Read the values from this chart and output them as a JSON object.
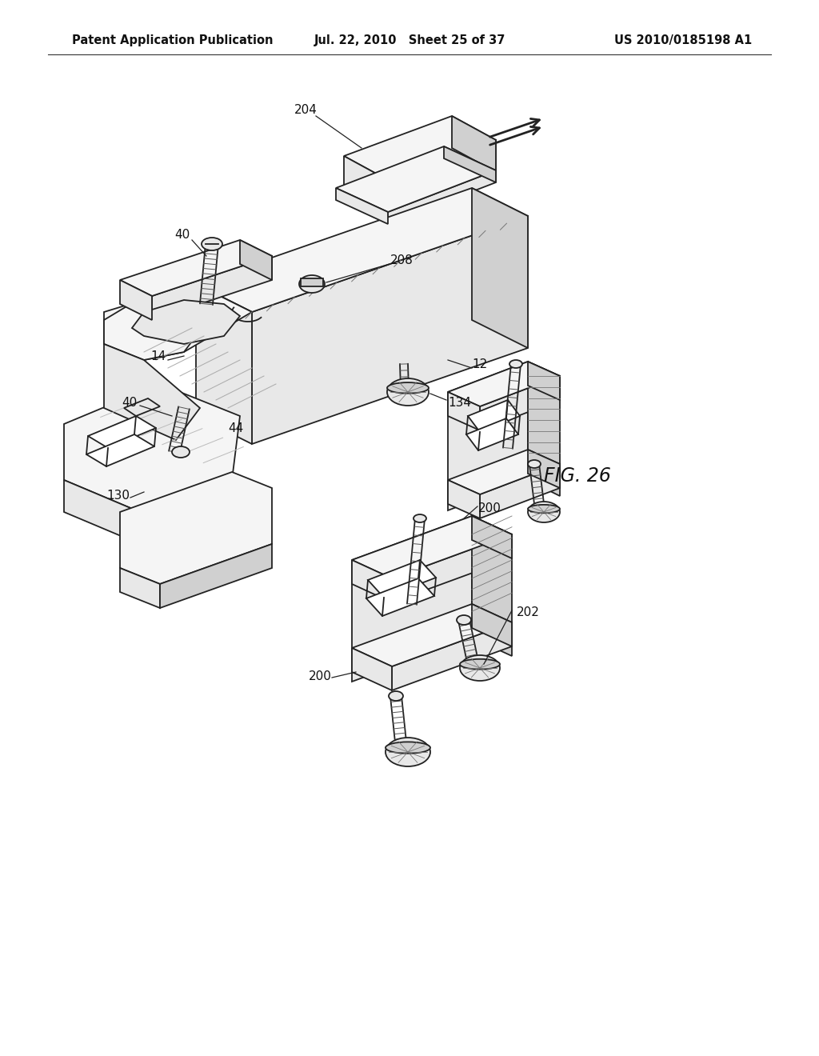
{
  "title_left": "Patent Application Publication",
  "title_center": "Jul. 22, 2010   Sheet 25 of 37",
  "title_right": "US 2010/0185198 A1",
  "fig_label": "FIG. 26",
  "background_color": "#ffffff",
  "line_color": "#222222",
  "fc_white": "#ffffff",
  "fc_light": "#f5f5f5",
  "fc_mid": "#e8e8e8",
  "fc_dark": "#d0d0d0",
  "fc_darker": "#b8b8b8"
}
